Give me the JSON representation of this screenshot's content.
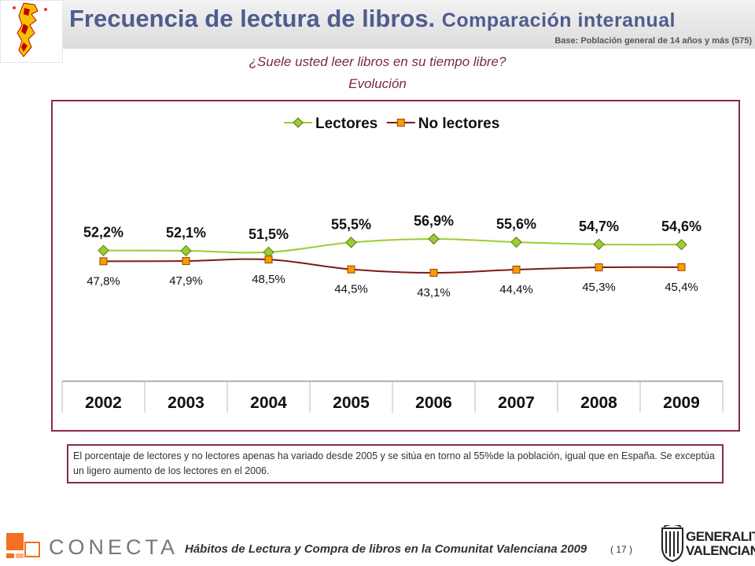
{
  "header": {
    "title_main": "Frecuencia de lectura de libros.",
    "title_sub": "Comparación interanual",
    "base": "Base: Población general de 14 años y más (575)"
  },
  "question": "¿Suele usted leer libros en su tiempo libre?",
  "subtitle": "Evolución",
  "chart_data": {
    "type": "line",
    "title": "",
    "xlabel": "",
    "ylabel": "",
    "categories": [
      "2002",
      "2003",
      "2004",
      "2005",
      "2006",
      "2007",
      "2008",
      "2009"
    ],
    "legend_position": "top-center",
    "grid": false,
    "y_axis_visible": false,
    "series": [
      {
        "name": "Lectores",
        "values": [
          52.2,
          52.1,
          51.5,
          55.5,
          56.9,
          55.6,
          54.7,
          54.6
        ],
        "labels": [
          "52,2%",
          "52,1%",
          "51,5%",
          "55,5%",
          "56,9%",
          "55,6%",
          "54,7%",
          "54,6%"
        ],
        "color": "#9acd32",
        "marker_color": "#9acd32",
        "marker": "diamond"
      },
      {
        "name": "No lectores",
        "values": [
          47.8,
          47.9,
          48.5,
          44.5,
          43.1,
          44.4,
          45.3,
          45.4
        ],
        "labels": [
          "47,8%",
          "47,9%",
          "48,5%",
          "44,5%",
          "43,1%",
          "44,4%",
          "45,3%",
          "45,4%"
        ],
        "color": "#7b1a1a",
        "marker_color": "#ff9900",
        "marker": "square"
      }
    ]
  },
  "note": "El porcentaje de lectores y no lectores apenas ha variado desde 2005 y se sitúa en torno al 55%de la población, igual que en España. Se exceptúa un ligero aumento de los lectores en el 2006.",
  "footer": {
    "text": "Hábitos de Lectura y Compra de libros en la Comunitat Valenciana 2009",
    "page": "( 17 )",
    "conecta": "CONECTA",
    "gv_line1": "GENERALITAT",
    "gv_line2": "VALENCIANA"
  },
  "colors": {
    "title": "#4f5c8e",
    "accent": "#8b2a45"
  }
}
